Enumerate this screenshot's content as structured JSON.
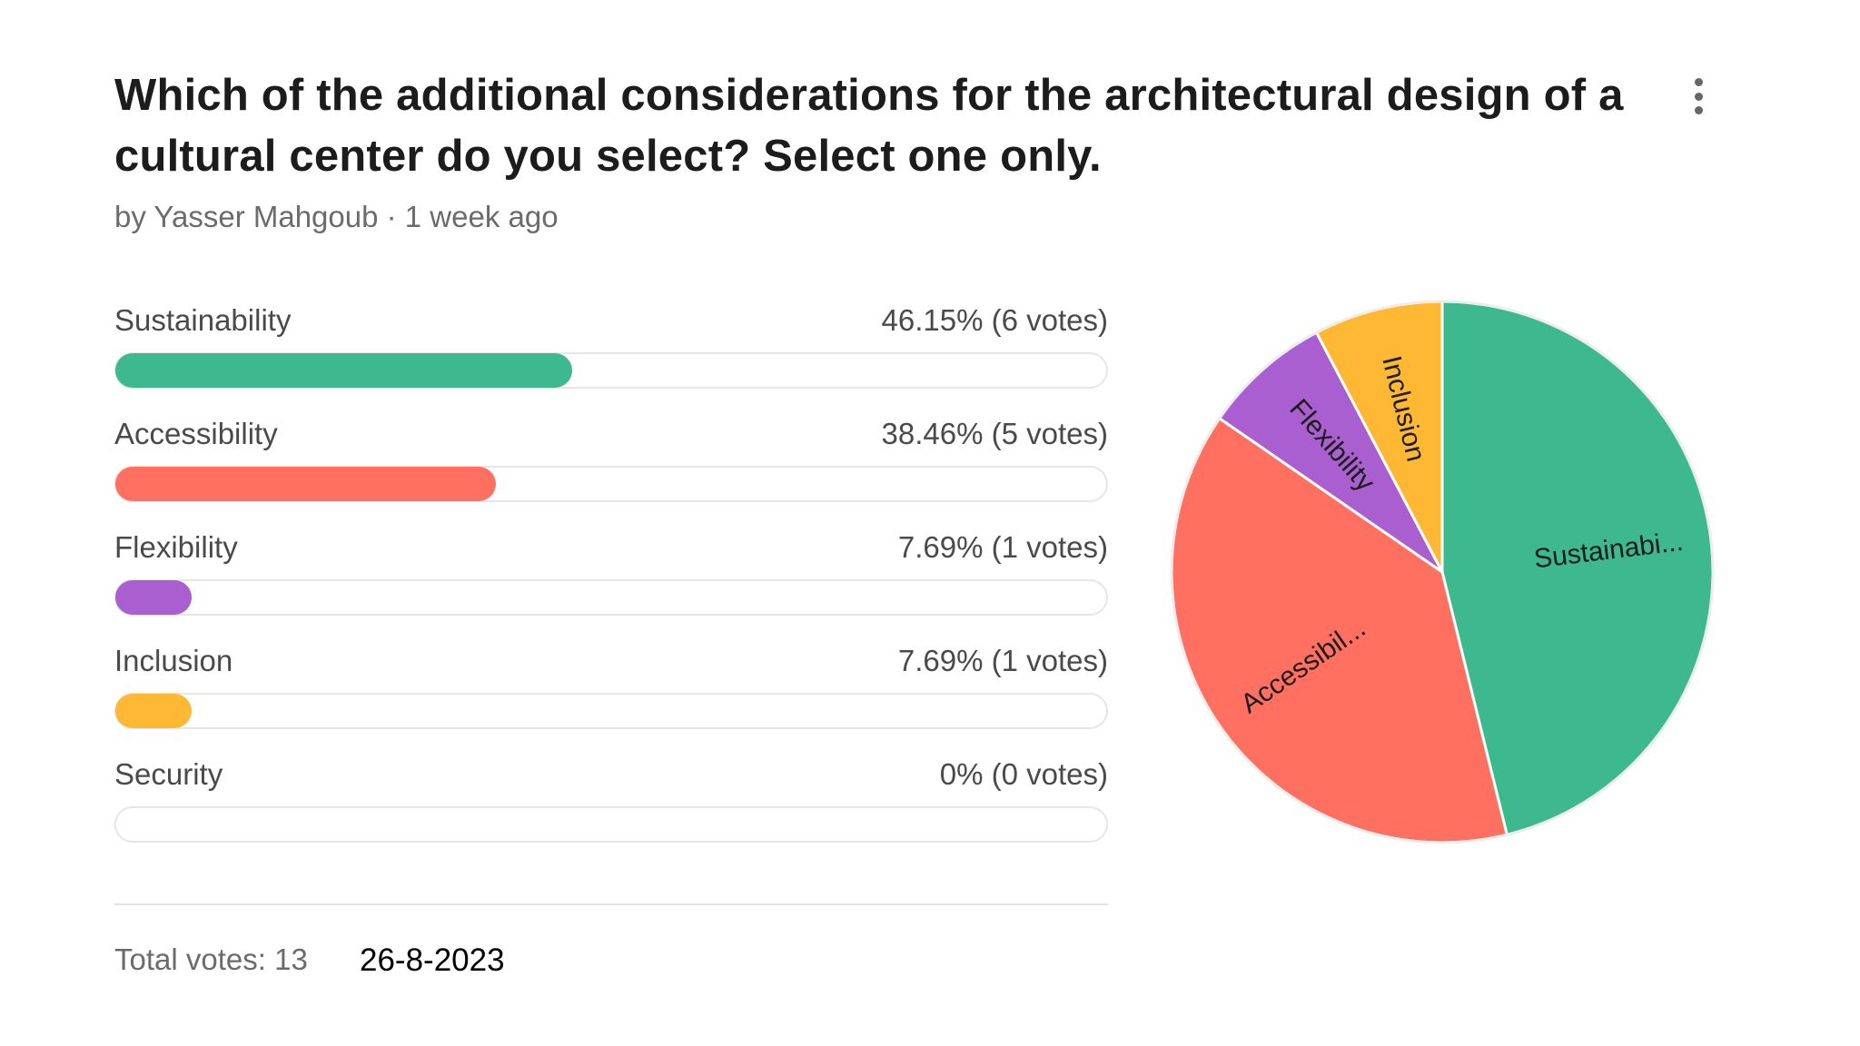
{
  "poll": {
    "question": "Which of the additional considerations for the architectural design of a cultural center do you select? Select one only.",
    "byline": "by Yasser Mahgoub · 1 week ago",
    "menu_icon": "more-vertical-icon",
    "options": [
      {
        "label": "Sustainability",
        "value_text": "46.15% (6 votes)",
        "percent": 46.15,
        "votes": 6,
        "color": "#3db88f",
        "pie_label": "Sustainabi..."
      },
      {
        "label": "Accessibility",
        "value_text": "38.46% (5 votes)",
        "percent": 38.46,
        "votes": 5,
        "color": "#ff7061",
        "pie_label": "Accessibil..."
      },
      {
        "label": "Flexibility",
        "value_text": "7.69% (1 votes)",
        "percent": 7.69,
        "votes": 1,
        "color": "#a95fcf",
        "pie_label": "Flexibility"
      },
      {
        "label": "Inclusion",
        "value_text": "7.69% (1 votes)",
        "percent": 7.69,
        "votes": 1,
        "color": "#ffb833",
        "pie_label": "Inclusion"
      },
      {
        "label": "Security",
        "value_text": "0% (0 votes)",
        "percent": 0,
        "votes": 0,
        "color": "#cccccc",
        "pie_label": ""
      }
    ],
    "total_votes": "Total votes: 13",
    "date": "26-8-2023"
  },
  "chart_data": {
    "type": "pie",
    "categories": [
      "Sustainability",
      "Accessibility",
      "Flexibility",
      "Inclusion",
      "Security"
    ],
    "values": [
      6,
      5,
      1,
      1,
      0
    ],
    "percentages": [
      46.15,
      38.46,
      7.69,
      7.69,
      0
    ],
    "colors": [
      "#3db88f",
      "#ff7061",
      "#a95fcf",
      "#ffb833",
      "#cccccc"
    ]
  }
}
